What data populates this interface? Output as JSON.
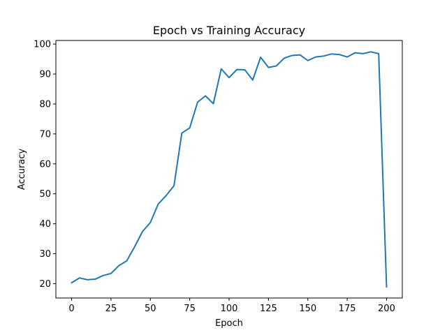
{
  "chart_data": {
    "type": "line",
    "title": "Epoch vs Training Accuracy",
    "xlabel": "Epoch",
    "ylabel": "Accuracy",
    "xlim": [
      -10,
      210
    ],
    "ylim": [
      15.2,
      101.2
    ],
    "xticks": [
      0,
      25,
      50,
      75,
      100,
      125,
      150,
      175,
      200
    ],
    "yticks": [
      20,
      30,
      40,
      50,
      60,
      70,
      80,
      90,
      100
    ],
    "grid": false,
    "series": [
      {
        "name": "",
        "color": "#1f77b4",
        "x": [
          0,
          5,
          10,
          15,
          20,
          25,
          30,
          35,
          40,
          45,
          50,
          55,
          60,
          65,
          70,
          75,
          80,
          85,
          90,
          95,
          100,
          105,
          110,
          115,
          120,
          125,
          130,
          135,
          140,
          145,
          150,
          155,
          160,
          165,
          170,
          175,
          180,
          185,
          190,
          195,
          200
        ],
        "y": [
          20.3,
          21.9,
          21.3,
          21.5,
          22.7,
          23.4,
          26.0,
          27.6,
          32.3,
          37.4,
          40.4,
          46.6,
          49.4,
          52.7,
          70.3,
          72.0,
          80.6,
          82.7,
          80.1,
          91.7,
          88.8,
          91.5,
          91.4,
          88.0,
          95.6,
          92.2,
          92.7,
          95.3,
          96.2,
          96.4,
          94.5,
          95.7,
          96.0,
          96.7,
          96.5,
          95.7,
          97.1,
          96.8,
          97.4,
          96.8,
          18.9
        ]
      }
    ]
  }
}
